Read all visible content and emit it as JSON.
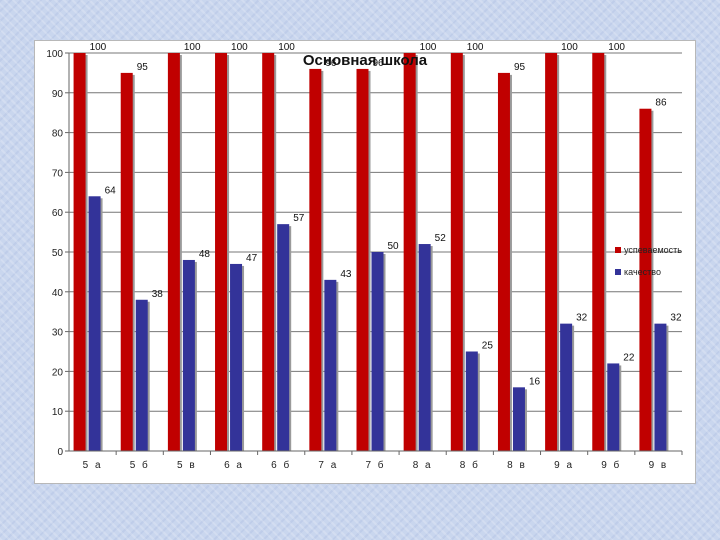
{
  "chart_data": {
    "type": "bar",
    "title": "Основная школа",
    "categories": [
      "5 а",
      "5 б",
      "5 в",
      "6 а",
      "6 б",
      "7 а",
      "7 б",
      "8 а",
      "8 б",
      "8 в",
      "9 а",
      "9 б",
      "9 в"
    ],
    "series": [
      {
        "name": "успеваемость",
        "color": "#c00000",
        "values": [
          100,
          95,
          100,
          100,
          100,
          96,
          96,
          100,
          100,
          95,
          100,
          100,
          86
        ]
      },
      {
        "name": "качество",
        "color": "#333399",
        "values": [
          64,
          38,
          48,
          47,
          57,
          43,
          50,
          52,
          25,
          16,
          32,
          22,
          32
        ]
      }
    ],
    "ylim": [
      0,
      100
    ],
    "yticks": [
      0,
      10,
      20,
      30,
      40,
      50,
      60,
      70,
      80,
      90,
      100
    ],
    "xlabel": "",
    "ylabel": "",
    "grid": true,
    "legend": "right"
  }
}
